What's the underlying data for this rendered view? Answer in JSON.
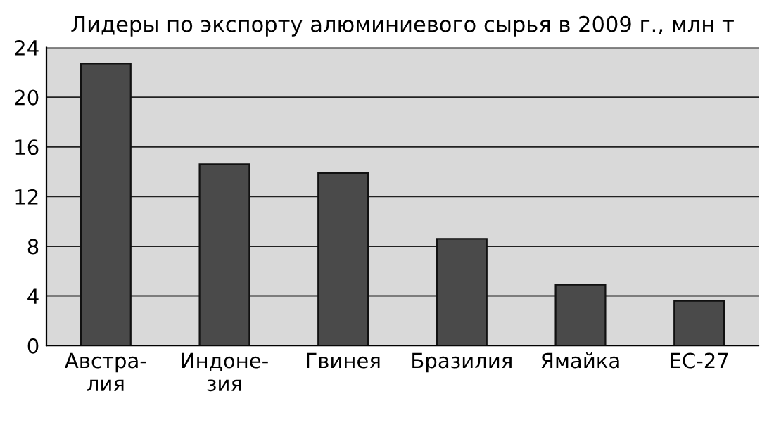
{
  "chart_data": {
    "type": "bar",
    "title": "Лидеры по экспорту алюминиевого сырья в 2009 г., млн т",
    "categories": [
      "Австра-\nлия",
      "Индоне-\nзия",
      "Гвинея",
      "Бразилия",
      "Ямайка",
      "ЕС-27"
    ],
    "values": [
      22.7,
      14.6,
      13.9,
      8.6,
      4.9,
      3.6
    ],
    "color": "#4a4a4a",
    "ylim": [
      0,
      24
    ],
    "yticks": [
      0,
      4,
      8,
      12,
      16,
      20,
      24
    ],
    "grid": "y"
  }
}
